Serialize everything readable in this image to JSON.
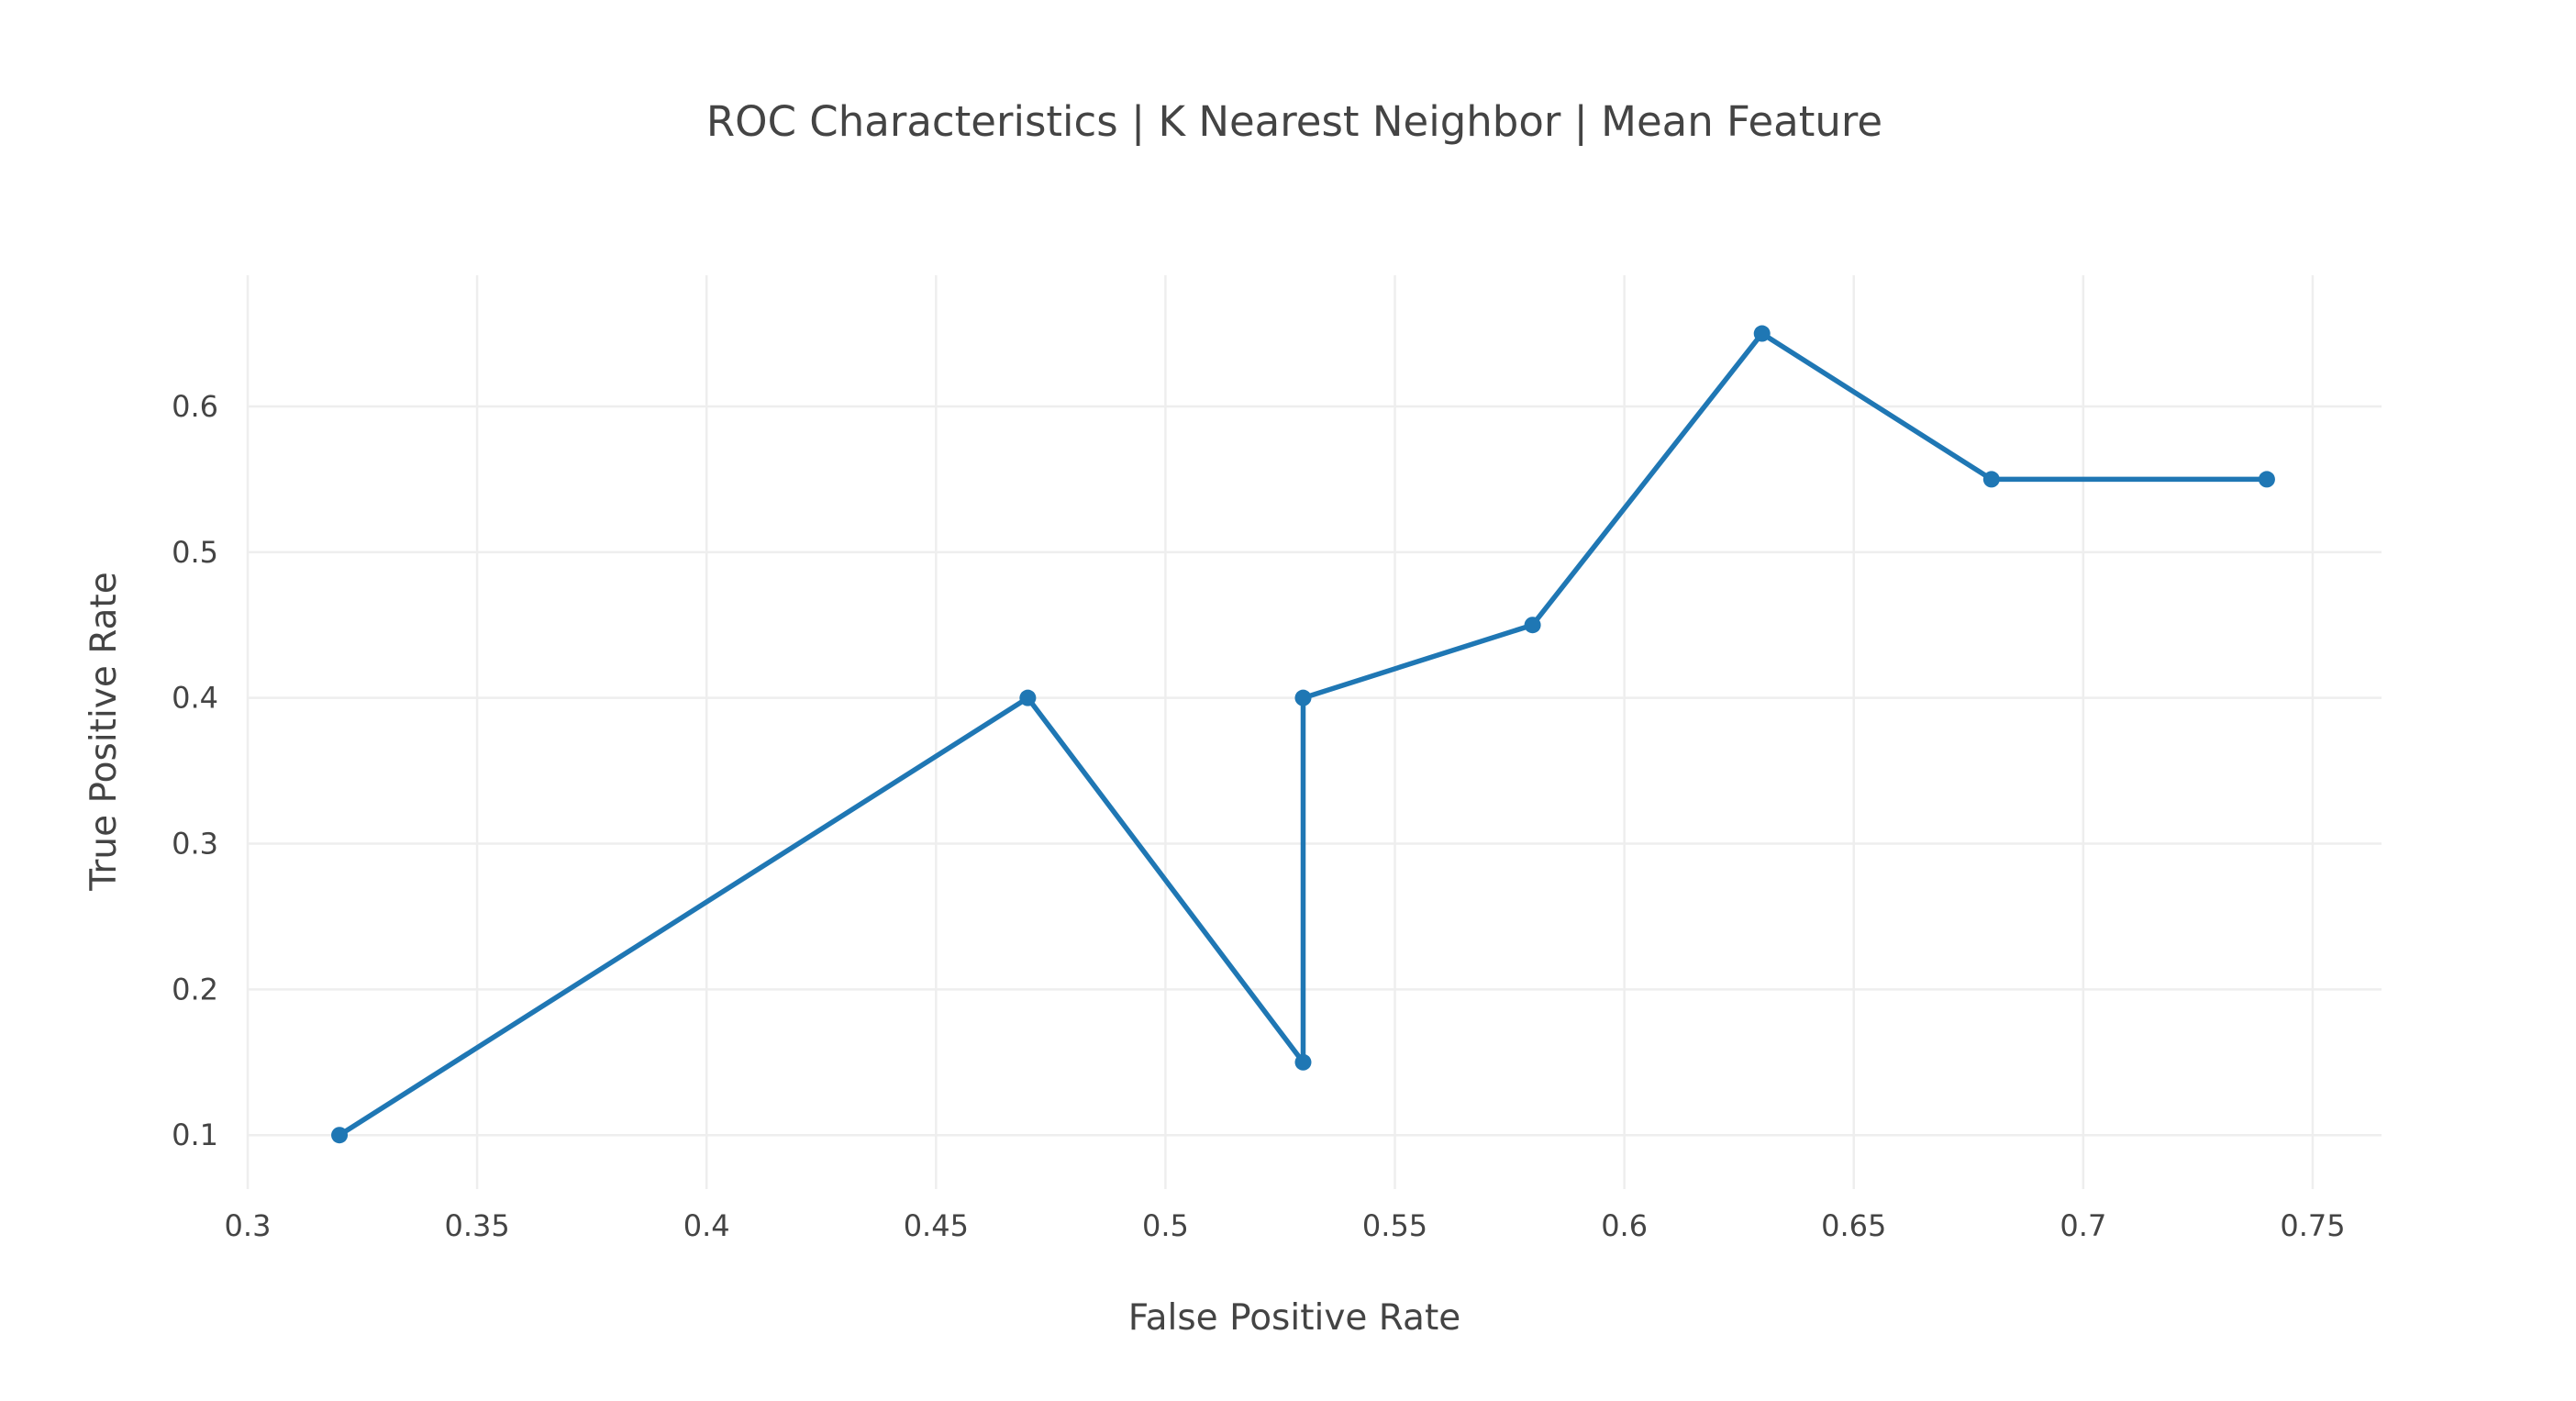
{
  "chart_data": {
    "type": "line",
    "title": "ROC Characteristics | K Nearest Neighbor | Mean Feature",
    "xlabel": "False Positive Rate",
    "ylabel": "True Positive Rate",
    "xlim": [
      0.3,
      0.765
    ],
    "ylim": [
      0.063,
      0.69
    ],
    "x_ticks": [
      0.3,
      0.35,
      0.4,
      0.45,
      0.5,
      0.55,
      0.6,
      0.65,
      0.7,
      0.75
    ],
    "x_tick_labels": [
      "0.3",
      "0.35",
      "0.4",
      "0.45",
      "0.5",
      "0.55",
      "0.6",
      "0.65",
      "0.7",
      "0.75"
    ],
    "y_ticks": [
      0.1,
      0.2,
      0.3,
      0.4,
      0.5,
      0.6
    ],
    "y_tick_labels": [
      "0.1",
      "0.2",
      "0.3",
      "0.4",
      "0.5",
      "0.6"
    ],
    "grid": true,
    "legend": false,
    "series": [
      {
        "x": [
          0.32,
          0.47,
          0.53,
          0.53,
          0.58,
          0.63,
          0.68,
          0.74
        ],
        "y": [
          0.1,
          0.4,
          0.15,
          0.4,
          0.45,
          0.65,
          0.55,
          0.55
        ],
        "color": "#1f77b4",
        "mode": "lines+markers"
      }
    ]
  }
}
